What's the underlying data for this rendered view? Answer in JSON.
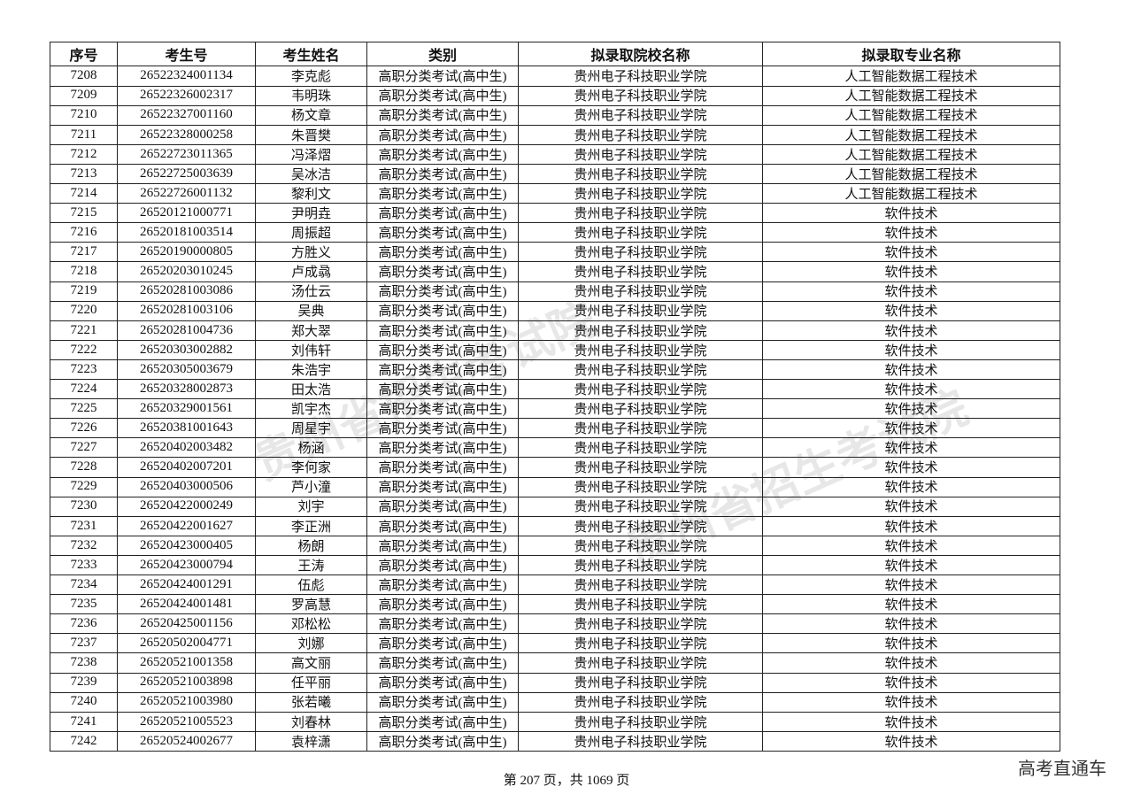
{
  "table": {
    "header": [
      "序号",
      "考生号",
      "考生姓名",
      "类别",
      "拟录取院校名称",
      "拟录取专业名称"
    ],
    "rows": [
      [
        "7208",
        "26522324001134",
        "李克彪",
        "高职分类考试(高中生)",
        "贵州电子科技职业学院",
        "人工智能数据工程技术"
      ],
      [
        "7209",
        "26522326002317",
        "韦明珠",
        "高职分类考试(高中生)",
        "贵州电子科技职业学院",
        "人工智能数据工程技术"
      ],
      [
        "7210",
        "26522327001160",
        "杨文章",
        "高职分类考试(高中生)",
        "贵州电子科技职业学院",
        "人工智能数据工程技术"
      ],
      [
        "7211",
        "26522328000258",
        "朱晋樊",
        "高职分类考试(高中生)",
        "贵州电子科技职业学院",
        "人工智能数据工程技术"
      ],
      [
        "7212",
        "26522723011365",
        "冯泽熠",
        "高职分类考试(高中生)",
        "贵州电子科技职业学院",
        "人工智能数据工程技术"
      ],
      [
        "7213",
        "26522725003639",
        "吴冰洁",
        "高职分类考试(高中生)",
        "贵州电子科技职业学院",
        "人工智能数据工程技术"
      ],
      [
        "7214",
        "26522726001132",
        "黎利文",
        "高职分类考试(高中生)",
        "贵州电子科技职业学院",
        "人工智能数据工程技术"
      ],
      [
        "7215",
        "26520121000771",
        "尹明垚",
        "高职分类考试(高中生)",
        "贵州电子科技职业学院",
        "软件技术"
      ],
      [
        "7216",
        "26520181003514",
        "周振超",
        "高职分类考试(高中生)",
        "贵州电子科技职业学院",
        "软件技术"
      ],
      [
        "7217",
        "26520190000805",
        "方胜义",
        "高职分类考试(高中生)",
        "贵州电子科技职业学院",
        "软件技术"
      ],
      [
        "7218",
        "26520203010245",
        "卢成骉",
        "高职分类考试(高中生)",
        "贵州电子科技职业学院",
        "软件技术"
      ],
      [
        "7219",
        "26520281003086",
        "汤仕云",
        "高职分类考试(高中生)",
        "贵州电子科技职业学院",
        "软件技术"
      ],
      [
        "7220",
        "26520281003106",
        "吴典",
        "高职分类考试(高中生)",
        "贵州电子科技职业学院",
        "软件技术"
      ],
      [
        "7221",
        "26520281004736",
        "郑大翠",
        "高职分类考试(高中生)",
        "贵州电子科技职业学院",
        "软件技术"
      ],
      [
        "7222",
        "26520303002882",
        "刘伟轩",
        "高职分类考试(高中生)",
        "贵州电子科技职业学院",
        "软件技术"
      ],
      [
        "7223",
        "26520305003679",
        "朱浩宇",
        "高职分类考试(高中生)",
        "贵州电子科技职业学院",
        "软件技术"
      ],
      [
        "7224",
        "26520328002873",
        "田太浩",
        "高职分类考试(高中生)",
        "贵州电子科技职业学院",
        "软件技术"
      ],
      [
        "7225",
        "26520329001561",
        "凯宇杰",
        "高职分类考试(高中生)",
        "贵州电子科技职业学院",
        "软件技术"
      ],
      [
        "7226",
        "26520381001643",
        "周星宇",
        "高职分类考试(高中生)",
        "贵州电子科技职业学院",
        "软件技术"
      ],
      [
        "7227",
        "26520402003482",
        "杨涵",
        "高职分类考试(高中生)",
        "贵州电子科技职业学院",
        "软件技术"
      ],
      [
        "7228",
        "26520402007201",
        "李何家",
        "高职分类考试(高中生)",
        "贵州电子科技职业学院",
        "软件技术"
      ],
      [
        "7229",
        "26520403000506",
        "芦小潼",
        "高职分类考试(高中生)",
        "贵州电子科技职业学院",
        "软件技术"
      ],
      [
        "7230",
        "26520422000249",
        "刘宇",
        "高职分类考试(高中生)",
        "贵州电子科技职业学院",
        "软件技术"
      ],
      [
        "7231",
        "26520422001627",
        "李正洲",
        "高职分类考试(高中生)",
        "贵州电子科技职业学院",
        "软件技术"
      ],
      [
        "7232",
        "26520423000405",
        "杨朗",
        "高职分类考试(高中生)",
        "贵州电子科技职业学院",
        "软件技术"
      ],
      [
        "7233",
        "26520423000794",
        "王涛",
        "高职分类考试(高中生)",
        "贵州电子科技职业学院",
        "软件技术"
      ],
      [
        "7234",
        "26520424001291",
        "伍彪",
        "高职分类考试(高中生)",
        "贵州电子科技职业学院",
        "软件技术"
      ],
      [
        "7235",
        "26520424001481",
        "罗高慧",
        "高职分类考试(高中生)",
        "贵州电子科技职业学院",
        "软件技术"
      ],
      [
        "7236",
        "26520425001156",
        "邓松松",
        "高职分类考试(高中生)",
        "贵州电子科技职业学院",
        "软件技术"
      ],
      [
        "7237",
        "26520502004771",
        "刘娜",
        "高职分类考试(高中生)",
        "贵州电子科技职业学院",
        "软件技术"
      ],
      [
        "7238",
        "26520521001358",
        "高文丽",
        "高职分类考试(高中生)",
        "贵州电子科技职业学院",
        "软件技术"
      ],
      [
        "7239",
        "26520521003898",
        "任平丽",
        "高职分类考试(高中生)",
        "贵州电子科技职业学院",
        "软件技术"
      ],
      [
        "7240",
        "26520521003980",
        "张若曦",
        "高职分类考试(高中生)",
        "贵州电子科技职业学院",
        "软件技术"
      ],
      [
        "7241",
        "26520521005523",
        "刘春林",
        "高职分类考试(高中生)",
        "贵州电子科技职业学院",
        "软件技术"
      ],
      [
        "7242",
        "26520524002677",
        "袁梓潇",
        "高职分类考试(高中生)",
        "贵州电子科技职业学院",
        "软件技术"
      ]
    ]
  },
  "footer": {
    "page": "第 207 页，共 1069 页"
  },
  "watermark": {
    "text": "贵州省招生考试院",
    "logo": "高考直通车"
  }
}
